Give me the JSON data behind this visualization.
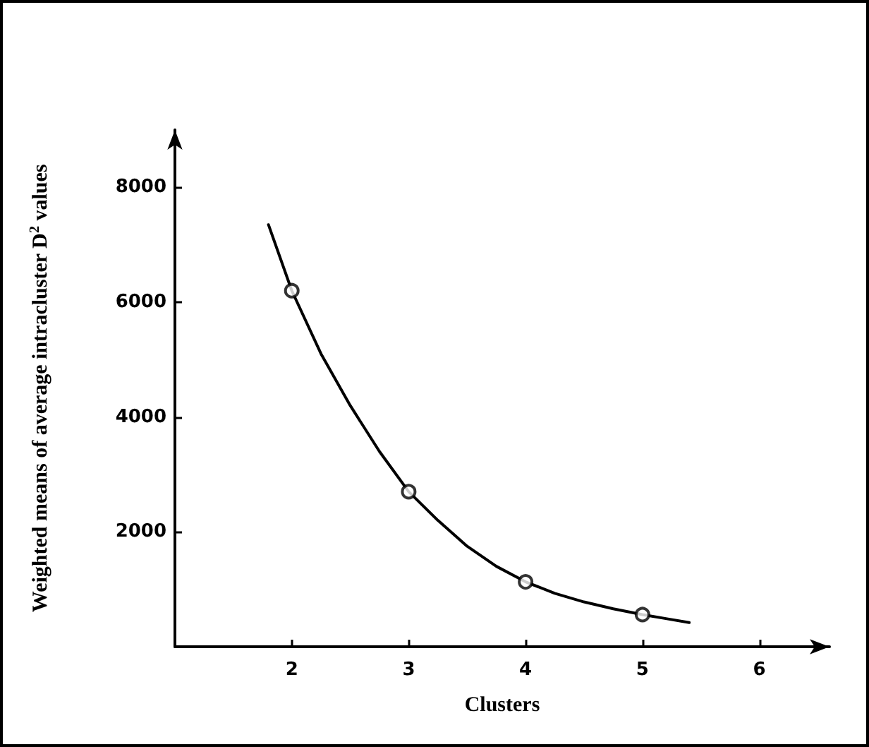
{
  "chart_data": {
    "type": "scatter",
    "xlabel": "Clusters",
    "ylabel": "Weighted means of average intracluster D$^{2}$ values",
    "xlim": [
      1,
      6.6
    ],
    "ylim": [
      0,
      9000
    ],
    "xticks": [
      2,
      3,
      4,
      5,
      6
    ],
    "yticks": [
      2000,
      4000,
      6000,
      8000
    ],
    "grid": false,
    "marker": "circle",
    "series": [
      {
        "type": "line",
        "color": "#000000",
        "marker": "none",
        "line_style": "solid",
        "x": [
          1.8,
          2,
          2.25,
          2.5,
          2.75,
          3,
          3.25,
          3.5,
          3.75,
          4,
          4.25,
          4.5,
          4.75,
          5,
          5.2,
          5.4
        ],
        "values": [
          7350,
          6200,
          5100,
          4200,
          3400,
          2700,
          2200,
          1750,
          1400,
          1130,
          930,
          780,
          660,
          560,
          490,
          420
        ]
      },
      {
        "color": "#000000",
        "x": [
          2,
          3,
          4,
          5
        ],
        "values": [
          6200,
          2700,
          1130,
          560
        ]
      }
    ]
  }
}
